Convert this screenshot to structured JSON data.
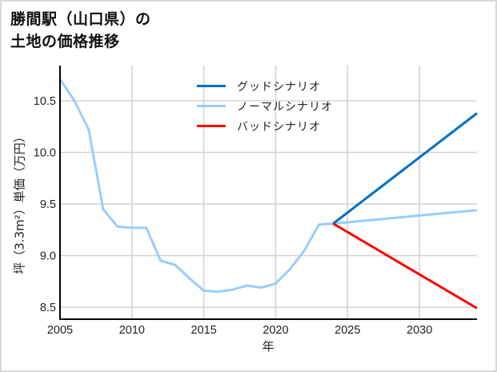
{
  "title_lines": [
    "勝間駅（山口県）の",
    "土地の価格推移"
  ],
  "chart_data": {
    "type": "line",
    "title": "勝間駅（山口県）の土地の価格推移",
    "xlabel": "年",
    "ylabel": "坪（3.3m²）単価（万円）",
    "xlim": [
      2005,
      2034
    ],
    "ylim": [
      8.38,
      10.84
    ],
    "x_ticks": [
      2005,
      2010,
      2015,
      2020,
      2025,
      2030
    ],
    "y_ticks": [
      8.5,
      9.0,
      9.5,
      10.0,
      10.5
    ],
    "y_tick_labels": [
      "8.5",
      "9.0",
      "9.5",
      "10.0",
      "10.5"
    ],
    "grid": true,
    "legend_position": "upper center",
    "series": [
      {
        "name": "グッドシナリオ",
        "color": "#0070c8",
        "x": [
          2024,
          2034
        ],
        "values": [
          9.31,
          10.38
        ]
      },
      {
        "name": "ノーマルシナリオ",
        "color": "#99ccff",
        "x": [
          2005,
          2006,
          2007,
          2008,
          2009,
          2010,
          2011,
          2012,
          2013,
          2014,
          2015,
          2016,
          2017,
          2018,
          2019,
          2020,
          2021,
          2022,
          2023,
          2024,
          2034
        ],
        "values": [
          10.71,
          10.5,
          10.22,
          9.45,
          9.28,
          9.27,
          9.27,
          8.95,
          8.91,
          8.78,
          8.66,
          8.65,
          8.67,
          8.71,
          8.69,
          8.73,
          8.87,
          9.05,
          9.3,
          9.31,
          9.44
        ]
      },
      {
        "name": "バッドシナリオ",
        "color": "#ff0000",
        "x": [
          2024,
          2034
        ],
        "values": [
          9.31,
          8.49
        ]
      }
    ]
  }
}
